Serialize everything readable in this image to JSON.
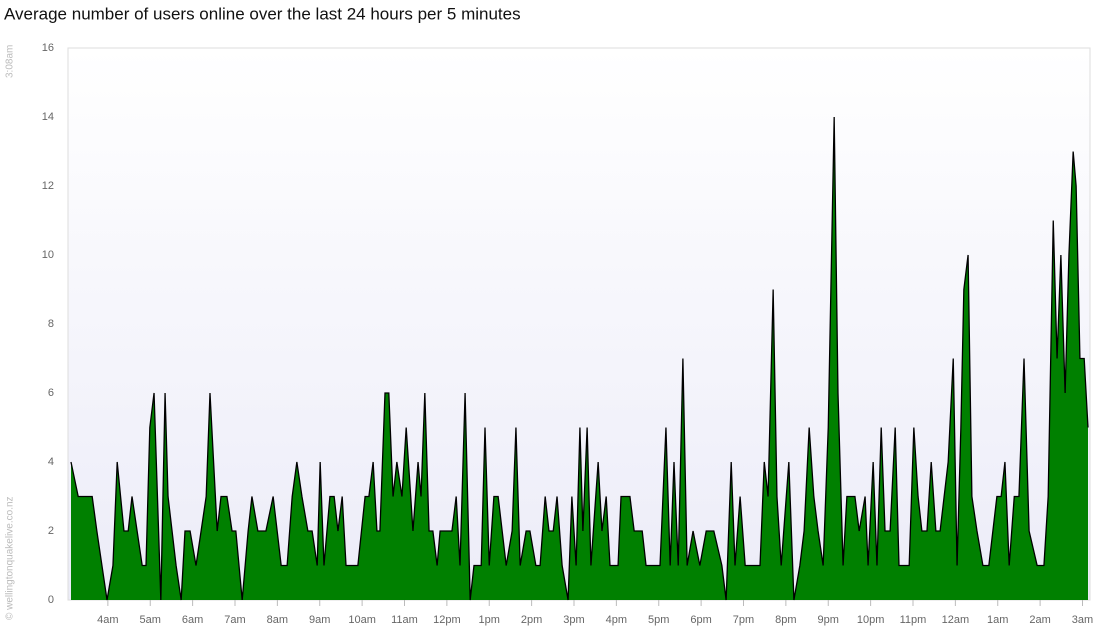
{
  "chart_data": {
    "type": "area",
    "title": "Average number of users online over the last 24 hours per 5 minutes",
    "annotations": [
      "3:08am",
      "© wellingtonquakelive.co.nz"
    ],
    "color": "#008000",
    "grid": false,
    "xlim": [
      3.13,
      27.13
    ],
    "ylim": [
      0,
      16
    ],
    "yticks": [
      0,
      2,
      4,
      6,
      8,
      10,
      12,
      14,
      16
    ],
    "xticks": [
      {
        "value": 4,
        "label": "4am"
      },
      {
        "value": 5,
        "label": "5am"
      },
      {
        "value": 6,
        "label": "6am"
      },
      {
        "value": 7,
        "label": "7am"
      },
      {
        "value": 8,
        "label": "8am"
      },
      {
        "value": 9,
        "label": "9am"
      },
      {
        "value": 10,
        "label": "10am"
      },
      {
        "value": 11,
        "label": "11am"
      },
      {
        "value": 12,
        "label": "12pm"
      },
      {
        "value": 13,
        "label": "1pm"
      },
      {
        "value": 14,
        "label": "2pm"
      },
      {
        "value": 15,
        "label": "3pm"
      },
      {
        "value": 16,
        "label": "4pm"
      },
      {
        "value": 17,
        "label": "5pm"
      },
      {
        "value": 18,
        "label": "6pm"
      },
      {
        "value": 19,
        "label": "7pm"
      },
      {
        "value": 20,
        "label": "8pm"
      },
      {
        "value": 21,
        "label": "9pm"
      },
      {
        "value": 22,
        "label": "10pm"
      },
      {
        "value": 23,
        "label": "11pm"
      },
      {
        "value": 24,
        "label": "12am"
      },
      {
        "value": 25,
        "label": "1am"
      },
      {
        "value": 26,
        "label": "2am"
      },
      {
        "value": 27,
        "label": "3am"
      }
    ],
    "x": [
      3.13,
      3.3,
      3.63,
      3.74,
      3.98,
      4.12,
      4.22,
      4.38,
      4.48,
      4.57,
      4.69,
      4.81,
      4.9,
      4.99,
      5.09,
      5.25,
      5.35,
      5.42,
      5.61,
      5.73,
      5.82,
      5.94,
      6.08,
      6.32,
      6.41,
      6.58,
      6.67,
      6.81,
      6.93,
      7.02,
      7.17,
      7.31,
      7.4,
      7.54,
      7.73,
      7.9,
      8.09,
      8.23,
      8.35,
      8.46,
      8.58,
      8.72,
      8.82,
      8.94,
      9.01,
      9.1,
      9.24,
      9.34,
      9.43,
      9.53,
      9.62,
      9.9,
      10.07,
      10.16,
      10.26,
      10.35,
      10.42,
      10.54,
      10.63,
      10.73,
      10.82,
      10.94,
      11.04,
      11.2,
      11.32,
      11.39,
      11.48,
      11.58,
      11.67,
      11.77,
      11.84,
      12.12,
      12.22,
      12.31,
      12.43,
      12.55,
      12.64,
      12.81,
      12.9,
      13.0,
      13.11,
      13.21,
      13.4,
      13.54,
      13.63,
      13.73,
      13.87,
      13.96,
      14.1,
      14.2,
      14.32,
      14.41,
      14.51,
      14.6,
      14.72,
      14.86,
      14.95,
      15.05,
      15.14,
      15.21,
      15.31,
      15.4,
      15.57,
      15.66,
      15.76,
      15.85,
      16.04,
      16.11,
      16.32,
      16.42,
      16.61,
      16.7,
      17.03,
      17.17,
      17.27,
      17.36,
      17.46,
      17.57,
      17.67,
      17.81,
      17.97,
      18.12,
      18.3,
      18.49,
      18.59,
      18.71,
      18.8,
      18.92,
      19.04,
      19.39,
      19.49,
      19.58,
      19.7,
      19.79,
      19.89,
      20.07,
      20.19,
      20.33,
      20.43,
      20.55,
      20.66,
      20.76,
      20.88,
      21.0,
      21.14,
      21.23,
      21.35,
      21.44,
      21.63,
      21.73,
      21.87,
      21.94,
      22.06,
      22.15,
      22.25,
      22.34,
      22.46,
      22.58,
      22.67,
      22.91,
      23.02,
      23.12,
      23.21,
      23.33,
      23.43,
      23.54,
      23.64,
      23.83,
      23.95,
      24.04,
      24.13,
      24.2,
      24.3,
      24.39,
      24.51,
      24.65,
      24.79,
      24.98,
      25.08,
      25.17,
      25.27,
      25.39,
      25.5,
      25.62,
      25.74,
      25.93,
      26.09,
      26.19,
      26.31,
      26.4,
      26.49,
      26.59,
      26.68,
      26.78,
      26.85,
      26.94,
      27.04,
      27.13
    ],
    "values": [
      4,
      3,
      3,
      2,
      0,
      1,
      4,
      2,
      2,
      3,
      2,
      1,
      1,
      5,
      6,
      0,
      6,
      3,
      1,
      0,
      2,
      2,
      1,
      3,
      6,
      2,
      3,
      3,
      2,
      2,
      0,
      2,
      3,
      2,
      2,
      3,
      1,
      1,
      3,
      4,
      3,
      2,
      2,
      1,
      4,
      1,
      3,
      3,
      2,
      3,
      1,
      1,
      3,
      3,
      4,
      2,
      2,
      6,
      6,
      3,
      4,
      3,
      5,
      2,
      4,
      3,
      6,
      2,
      2,
      1,
      2,
      2,
      3,
      1,
      6,
      0,
      1,
      1,
      5,
      1,
      3,
      3,
      1,
      2,
      5,
      1,
      2,
      2,
      1,
      1,
      3,
      2,
      2,
      3,
      1,
      0,
      3,
      1,
      5,
      2,
      5,
      1,
      4,
      2,
      3,
      1,
      1,
      3,
      3,
      2,
      2,
      1,
      1,
      5,
      1,
      4,
      1,
      7,
      1,
      2,
      1,
      2,
      2,
      1,
      0,
      4,
      1,
      3,
      1,
      1,
      4,
      3,
      9,
      3,
      1,
      4,
      0,
      1,
      2,
      5,
      3,
      2,
      1,
      5,
      14,
      6,
      1,
      3,
      3,
      2,
      3,
      1,
      4,
      1,
      5,
      2,
      2,
      5,
      1,
      1,
      5,
      3,
      2,
      2,
      4,
      2,
      2,
      4,
      7,
      1,
      5,
      9,
      10,
      3,
      2,
      1,
      1,
      3,
      3,
      4,
      1,
      3,
      3,
      7,
      2,
      1,
      1,
      3,
      11,
      7,
      10,
      6,
      10,
      13,
      12,
      7,
      7,
      5
    ]
  }
}
